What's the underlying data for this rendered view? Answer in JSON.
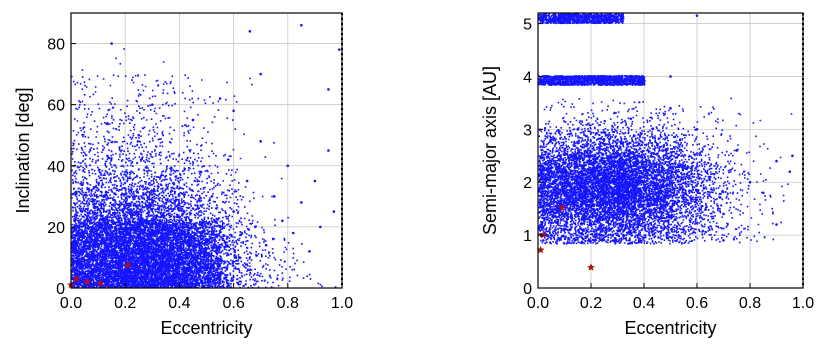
{
  "colors": {
    "points": "#1414ff",
    "markers": "#b01010",
    "frame": "#000000",
    "grid": "#c8c8c8"
  },
  "chart_data": [
    {
      "type": "scatter",
      "title": "",
      "xlabel": "Eccentricity",
      "ylabel": "Inclination [deg]",
      "xlim": [
        0,
        1
      ],
      "ylim": [
        0,
        90
      ],
      "xticks": [
        "0.0",
        "0.2",
        "0.4",
        "0.6",
        "0.8",
        "1.0"
      ],
      "yticks": [
        "0",
        "20",
        "40",
        "60",
        "80"
      ],
      "grid": true,
      "series": [
        {
          "marker": "dot",
          "approx_count": 20000,
          "values": [
            [
              0.03,
              18
            ],
            [
              0.05,
              22
            ],
            [
              0.08,
              12
            ],
            [
              0.1,
              26
            ],
            [
              0.12,
              30
            ],
            [
              0.15,
              16
            ],
            [
              0.18,
              10
            ],
            [
              0.2,
              24
            ],
            [
              0.22,
              32
            ],
            [
              0.25,
              14
            ],
            [
              0.28,
              20
            ],
            [
              0.3,
              28
            ],
            [
              0.32,
              8
            ],
            [
              0.35,
              18
            ],
            [
              0.38,
              34
            ],
            [
              0.4,
              22
            ],
            [
              0.42,
              12
            ],
            [
              0.45,
              26
            ],
            [
              0.48,
              38
            ],
            [
              0.5,
              16
            ],
            [
              0.52,
              30
            ],
            [
              0.55,
              20
            ],
            [
              0.58,
              42
            ],
            [
              0.6,
              25
            ],
            [
              0.62,
              10
            ],
            [
              0.65,
              35
            ],
            [
              0.68,
              20
            ],
            [
              0.7,
              48
            ],
            [
              0.72,
              14
            ],
            [
              0.75,
              30
            ],
            [
              0.78,
              22
            ],
            [
              0.8,
              40
            ],
            [
              0.82,
              18
            ],
            [
              0.85,
              28
            ],
            [
              0.88,
              12
            ],
            [
              0.9,
              35
            ],
            [
              0.92,
              20
            ],
            [
              0.95,
              45
            ],
            [
              0.97,
              25
            ],
            [
              0.99,
              78
            ],
            [
              0.15,
              80
            ],
            [
              0.66,
              84
            ],
            [
              0.85,
              86
            ],
            [
              0.3,
              60
            ],
            [
              0.45,
              55
            ],
            [
              0.55,
              62
            ],
            [
              0.7,
              70
            ],
            [
              0.95,
              65
            ],
            [
              0.25,
              50
            ],
            [
              0.6,
              58
            ]
          ]
        },
        {
          "marker": "star",
          "values": [
            [
              0.0,
              1
            ],
            [
              0.02,
              3
            ],
            [
              0.06,
              2
            ],
            [
              0.11,
              1.5
            ],
            [
              0.21,
              7.5
            ]
          ]
        }
      ]
    },
    {
      "type": "scatter",
      "title": "",
      "xlabel": "Eccentricity",
      "ylabel": "Semi-major axis [AU]",
      "xlim": [
        0,
        1
      ],
      "ylim": [
        0,
        5.2
      ],
      "xticks": [
        "0.0",
        "0.2",
        "0.4",
        "0.6",
        "0.8",
        "1.0"
      ],
      "yticks": [
        "0",
        "1",
        "2",
        "3",
        "4",
        "5"
      ],
      "grid": true,
      "series": [
        {
          "marker": "dot",
          "approx_count": 20000,
          "values": [
            [
              0.05,
              2.2
            ],
            [
              0.1,
              2.6
            ],
            [
              0.15,
              3.0
            ],
            [
              0.2,
              1.8
            ],
            [
              0.25,
              2.4
            ],
            [
              0.3,
              2.8
            ],
            [
              0.35,
              3.2
            ],
            [
              0.4,
              2.0
            ],
            [
              0.45,
              2.7
            ],
            [
              0.5,
              1.5
            ],
            [
              0.55,
              2.3
            ],
            [
              0.6,
              3.0
            ],
            [
              0.65,
              2.1
            ],
            [
              0.7,
              1.4
            ],
            [
              0.75,
              2.6
            ],
            [
              0.8,
              2.0
            ],
            [
              0.85,
              1.8
            ],
            [
              0.9,
              2.4
            ],
            [
              0.95,
              2.2
            ],
            [
              0.5,
              3.4
            ],
            [
              0.1,
              3.9
            ],
            [
              0.2,
              4.0
            ],
            [
              0.3,
              3.95
            ],
            [
              0.4,
              3.9
            ],
            [
              0.5,
              4.0
            ],
            [
              0.08,
              5.1
            ],
            [
              0.15,
              5.15
            ],
            [
              0.25,
              5.05
            ],
            [
              0.32,
              5.2
            ],
            [
              0.6,
              5.15
            ],
            [
              0.96,
              2.5
            ],
            [
              0.9,
              1.2
            ],
            [
              0.7,
              0.9
            ],
            [
              0.55,
              1.1
            ],
            [
              0.05,
              1.0
            ],
            [
              0.02,
              0.9
            ]
          ]
        },
        {
          "marker": "star",
          "values": [
            [
              0.01,
              0.72
            ],
            [
              0.02,
              1.0
            ],
            [
              0.09,
              1.52
            ],
            [
              0.2,
              0.39
            ]
          ]
        }
      ]
    }
  ]
}
